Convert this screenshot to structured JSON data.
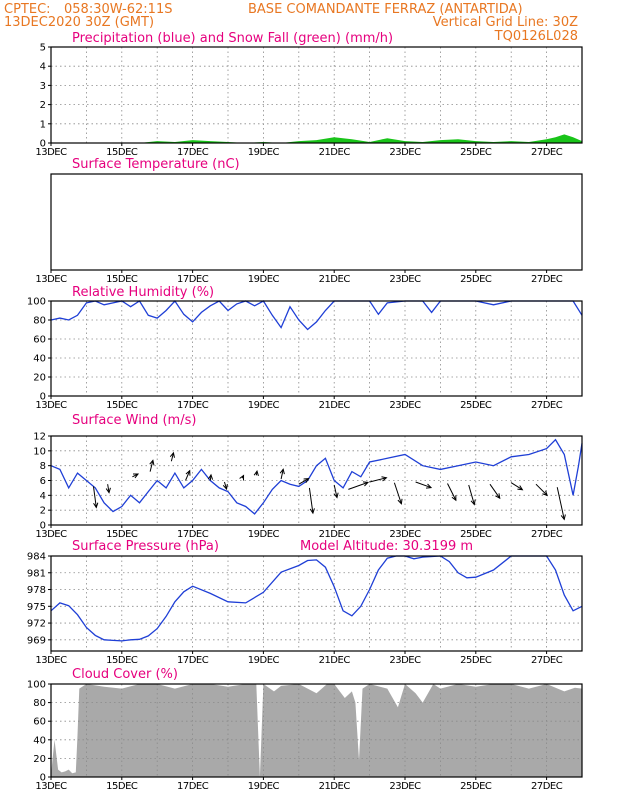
{
  "header": {
    "line1_left": "CPTEC:",
    "line1_coords": "058:30W-62:11S",
    "line1_station": "BASE COMANDANTE FERRAZ (ANTARTIDA)",
    "line2_left": "13DEC2020 30Z (GMT)",
    "line2_right": "Vertical Grid Line: 30Z",
    "line3_right": "TQ0126L028"
  },
  "x_tick_labels": [
    "13DEC",
    "15DEC",
    "17DEC",
    "19DEC",
    "21DEC",
    "23DEC",
    "25DEC",
    "27DEC"
  ],
  "colors": {
    "header": "#e87722",
    "title": "#e6007e",
    "line": "#1f3fd6",
    "snow": "#19c419",
    "precip": "#1f3fd6",
    "cloud": "#a9a9a9",
    "arrow": "#000000"
  },
  "chart_data": [
    {
      "type": "area",
      "title": "Precipitation (blue) and Snow Fall (green) (mm/h)",
      "ylim": [
        0,
        5
      ],
      "yticks": [
        0,
        1,
        2,
        3,
        4,
        5
      ],
      "x": [
        13.0,
        13.5,
        14.0,
        14.5,
        15.0,
        15.5,
        16.0,
        16.5,
        17.0,
        17.5,
        18.0,
        18.5,
        19.0,
        19.5,
        20.0,
        20.5,
        21.0,
        21.5,
        22.0,
        22.5,
        23.0,
        23.5,
        24.0,
        24.5,
        25.0,
        25.5,
        26.0,
        26.5,
        27.0,
        27.25,
        27.5,
        27.75,
        28.0
      ],
      "series": [
        {
          "name": "Precipitation",
          "values": [
            0,
            0,
            0,
            0,
            0,
            0,
            0,
            0,
            0,
            0,
            0,
            0,
            0,
            0,
            0,
            0,
            0,
            0,
            0,
            0.05,
            0,
            0,
            0,
            0,
            0,
            0,
            0,
            0,
            0.1,
            0.25,
            0.35,
            0.2,
            0
          ]
        },
        {
          "name": "Snow Fall",
          "values": [
            0,
            0,
            0,
            0,
            0,
            0,
            0.1,
            0.05,
            0.15,
            0.1,
            0.05,
            0,
            0.05,
            0,
            0.1,
            0.15,
            0.3,
            0.2,
            0.05,
            0.25,
            0.1,
            0.05,
            0.15,
            0.2,
            0.1,
            0.05,
            0.1,
            0.05,
            0.2,
            0.3,
            0.45,
            0.3,
            0.1
          ]
        }
      ]
    },
    {
      "type": "line",
      "title": "Surface Temperature (nC)",
      "series": []
    },
    {
      "type": "line",
      "title": "Relative Humidity (%)",
      "ylim": [
        0,
        100
      ],
      "yticks": [
        0,
        20,
        40,
        60,
        80,
        100
      ],
      "x": [
        13.0,
        13.25,
        13.5,
        13.75,
        14.0,
        14.25,
        14.5,
        14.75,
        15.0,
        15.25,
        15.5,
        15.75,
        16.0,
        16.25,
        16.5,
        16.75,
        17.0,
        17.25,
        17.5,
        17.75,
        18.0,
        18.25,
        18.5,
        18.75,
        19.0,
        19.25,
        19.5,
        19.75,
        20.0,
        20.25,
        20.5,
        20.75,
        21.0,
        21.5,
        22.0,
        22.25,
        22.5,
        23.0,
        23.5,
        23.75,
        24.0,
        24.5,
        25.0,
        25.5,
        26.0,
        26.5,
        27.0,
        27.5,
        27.75,
        28.0
      ],
      "series": [
        {
          "name": "Relative Humidity",
          "values": [
            80,
            82,
            80,
            85,
            98,
            100,
            96,
            98,
            100,
            94,
            100,
            85,
            82,
            90,
            100,
            86,
            78,
            88,
            95,
            100,
            90,
            97,
            100,
            95,
            100,
            85,
            72,
            94,
            80,
            70,
            78,
            90,
            100,
            100,
            100,
            86,
            98,
            100,
            100,
            88,
            100,
            100,
            100,
            96,
            100,
            100,
            100,
            100,
            100,
            85
          ]
        }
      ]
    },
    {
      "type": "line",
      "title": "Surface Wind (m/s)",
      "ylim": [
        0,
        12
      ],
      "yticks": [
        0,
        2,
        4,
        6,
        8,
        10,
        12
      ],
      "x": [
        13.0,
        13.25,
        13.5,
        13.75,
        14.0,
        14.25,
        14.5,
        14.75,
        15.0,
        15.25,
        15.5,
        15.75,
        16.0,
        16.25,
        16.5,
        16.75,
        17.0,
        17.25,
        17.5,
        17.75,
        18.0,
        18.25,
        18.5,
        18.75,
        19.0,
        19.25,
        19.5,
        19.75,
        20.0,
        20.25,
        20.5,
        20.75,
        21.0,
        21.25,
        21.5,
        21.75,
        22.0,
        22.5,
        23.0,
        23.5,
        24.0,
        24.5,
        25.0,
        25.5,
        26.0,
        26.5,
        27.0,
        27.25,
        27.5,
        27.75,
        27.9,
        28.0
      ],
      "series": [
        {
          "name": "Surface Wind",
          "values": [
            8,
            7.5,
            5,
            7,
            6,
            5,
            3,
            1.8,
            2.5,
            4,
            3,
            4.5,
            6,
            5,
            7,
            5,
            6,
            7.5,
            6,
            5,
            4.5,
            3,
            2.5,
            1.5,
            3,
            4.8,
            6,
            5.5,
            5.2,
            6,
            8,
            9,
            6,
            5,
            7.2,
            6.5,
            8.5,
            9,
            9.5,
            8,
            7.5,
            8,
            8.5,
            8,
            9.2,
            9.5,
            10.3,
            11.5,
            9.5,
            4,
            8,
            11
          ]
        }
      ],
      "arrows": [
        {
          "x": 14.2,
          "y": 5.2,
          "u": 0.2,
          "v": -1.5
        },
        {
          "x": 14.6,
          "y": 5.5,
          "u": 0.1,
          "v": -0.6
        },
        {
          "x": 15.3,
          "y": 6.5,
          "u": 0.4,
          "v": 0.2
        },
        {
          "x": 15.8,
          "y": 7.2,
          "u": 0.2,
          "v": 0.8
        },
        {
          "x": 16.4,
          "y": 8.6,
          "u": 0.15,
          "v": 0.6
        },
        {
          "x": 16.8,
          "y": 6.0,
          "u": 0.3,
          "v": 0.7
        },
        {
          "x": 17.5,
          "y": 6.0,
          "u": 0.05,
          "v": 0.4
        },
        {
          "x": 17.9,
          "y": 5.8,
          "u": 0.15,
          "v": -0.5
        },
        {
          "x": 18.4,
          "y": 6.3,
          "u": 0.1,
          "v": 0.2
        },
        {
          "x": 18.8,
          "y": 6.7,
          "u": 0.05,
          "v": 0.3
        },
        {
          "x": 19.5,
          "y": 6.2,
          "u": 0.15,
          "v": 0.7
        },
        {
          "x": 20.0,
          "y": 5.5,
          "u": 0.7,
          "v": 0.4
        },
        {
          "x": 20.3,
          "y": 5.0,
          "u": 0.25,
          "v": -1.8
        },
        {
          "x": 21.0,
          "y": 5.4,
          "u": 0.2,
          "v": -0.9
        },
        {
          "x": 21.4,
          "y": 4.8,
          "u": 1.4,
          "v": 0.5
        },
        {
          "x": 22.0,
          "y": 5.8,
          "u": 1.2,
          "v": 0.3
        },
        {
          "x": 22.7,
          "y": 5.7,
          "u": 0.5,
          "v": -1.5
        },
        {
          "x": 23.3,
          "y": 5.8,
          "u": 1.1,
          "v": -0.4
        },
        {
          "x": 24.2,
          "y": 5.6,
          "u": 0.6,
          "v": -1.2
        },
        {
          "x": 24.8,
          "y": 5.4,
          "u": 0.4,
          "v": -1.4
        },
        {
          "x": 25.4,
          "y": 5.5,
          "u": 0.7,
          "v": -1.0
        },
        {
          "x": 26.0,
          "y": 5.7,
          "u": 0.8,
          "v": -0.5
        },
        {
          "x": 26.7,
          "y": 5.5,
          "u": 0.8,
          "v": -0.8
        },
        {
          "x": 27.3,
          "y": 5.1,
          "u": 0.5,
          "v": -2.3
        }
      ]
    },
    {
      "type": "line",
      "title": "Surface Pressure (hPa)",
      "annotation": "Model Altitude: 30.3199 m",
      "ylim": [
        967,
        984
      ],
      "yticks": [
        969,
        972,
        975,
        978,
        981,
        984
      ],
      "x": [
        13.0,
        13.25,
        13.5,
        13.75,
        14.0,
        14.25,
        14.5,
        14.75,
        15.0,
        15.25,
        15.5,
        15.75,
        16.0,
        16.25,
        16.5,
        16.75,
        17.0,
        17.5,
        18.0,
        18.5,
        19.0,
        19.5,
        20.0,
        20.25,
        20.5,
        20.75,
        21.0,
        21.25,
        21.5,
        21.75,
        22.0,
        22.25,
        22.5,
        22.75,
        23.0,
        23.25,
        23.5,
        24.0,
        24.25,
        24.5,
        24.75,
        25.0,
        25.5,
        26.0,
        26.25,
        26.5,
        27.0,
        27.25,
        27.5,
        27.75,
        28.0
      ],
      "series": [
        {
          "name": "Surface Pressure",
          "values": [
            974.2,
            975.6,
            975.1,
            973.5,
            971.2,
            969.8,
            969.0,
            968.9,
            968.8,
            969.0,
            969.1,
            969.7,
            971.0,
            973.2,
            975.8,
            977.6,
            978.6,
            977.3,
            975.8,
            975.6,
            977.5,
            981.1,
            982.3,
            983.2,
            983.3,
            982.0,
            978.5,
            974.2,
            973.3,
            975.0,
            978.0,
            981.5,
            983.6,
            984.8,
            985.0,
            983.5,
            983.8,
            985.0,
            983.0,
            981.0,
            980.1,
            980.2,
            981.5,
            985.0,
            985.6,
            985.7,
            984.5,
            981.5,
            977.0,
            974.2,
            975.0
          ]
        }
      ]
    },
    {
      "type": "area",
      "title": "Cloud Cover (%)",
      "ylim": [
        0,
        100
      ],
      "yticks": [
        0,
        20,
        40,
        60,
        80,
        100
      ],
      "x": [
        13.0,
        13.1,
        13.2,
        13.3,
        13.4,
        13.5,
        13.6,
        13.7,
        13.75,
        13.8,
        14.0,
        14.5,
        15.0,
        15.5,
        16.0,
        16.5,
        17.0,
        17.5,
        18.0,
        18.5,
        18.8,
        18.9,
        19.0,
        19.3,
        19.5,
        20.0,
        20.5,
        20.8,
        21.0,
        21.3,
        21.5,
        21.6,
        21.7,
        21.8,
        22.0,
        22.5,
        22.8,
        23.0,
        23.3,
        23.5,
        23.8,
        24.0,
        24.5,
        25.0,
        25.5,
        26.0,
        26.5,
        27.0,
        27.5,
        27.8,
        28.0
      ],
      "series": [
        {
          "name": "Cloud Cover",
          "values": [
            2,
            40,
            8,
            5,
            6,
            8,
            4,
            5,
            45,
            95,
            100,
            97,
            95,
            100,
            100,
            95,
            100,
            100,
            97,
            100,
            100,
            0,
            100,
            92,
            98,
            100,
            90,
            100,
            100,
            85,
            92,
            80,
            18,
            95,
            100,
            95,
            75,
            100,
            90,
            80,
            100,
            95,
            100,
            97,
            100,
            100,
            95,
            100,
            92,
            96,
            95
          ]
        }
      ]
    }
  ]
}
